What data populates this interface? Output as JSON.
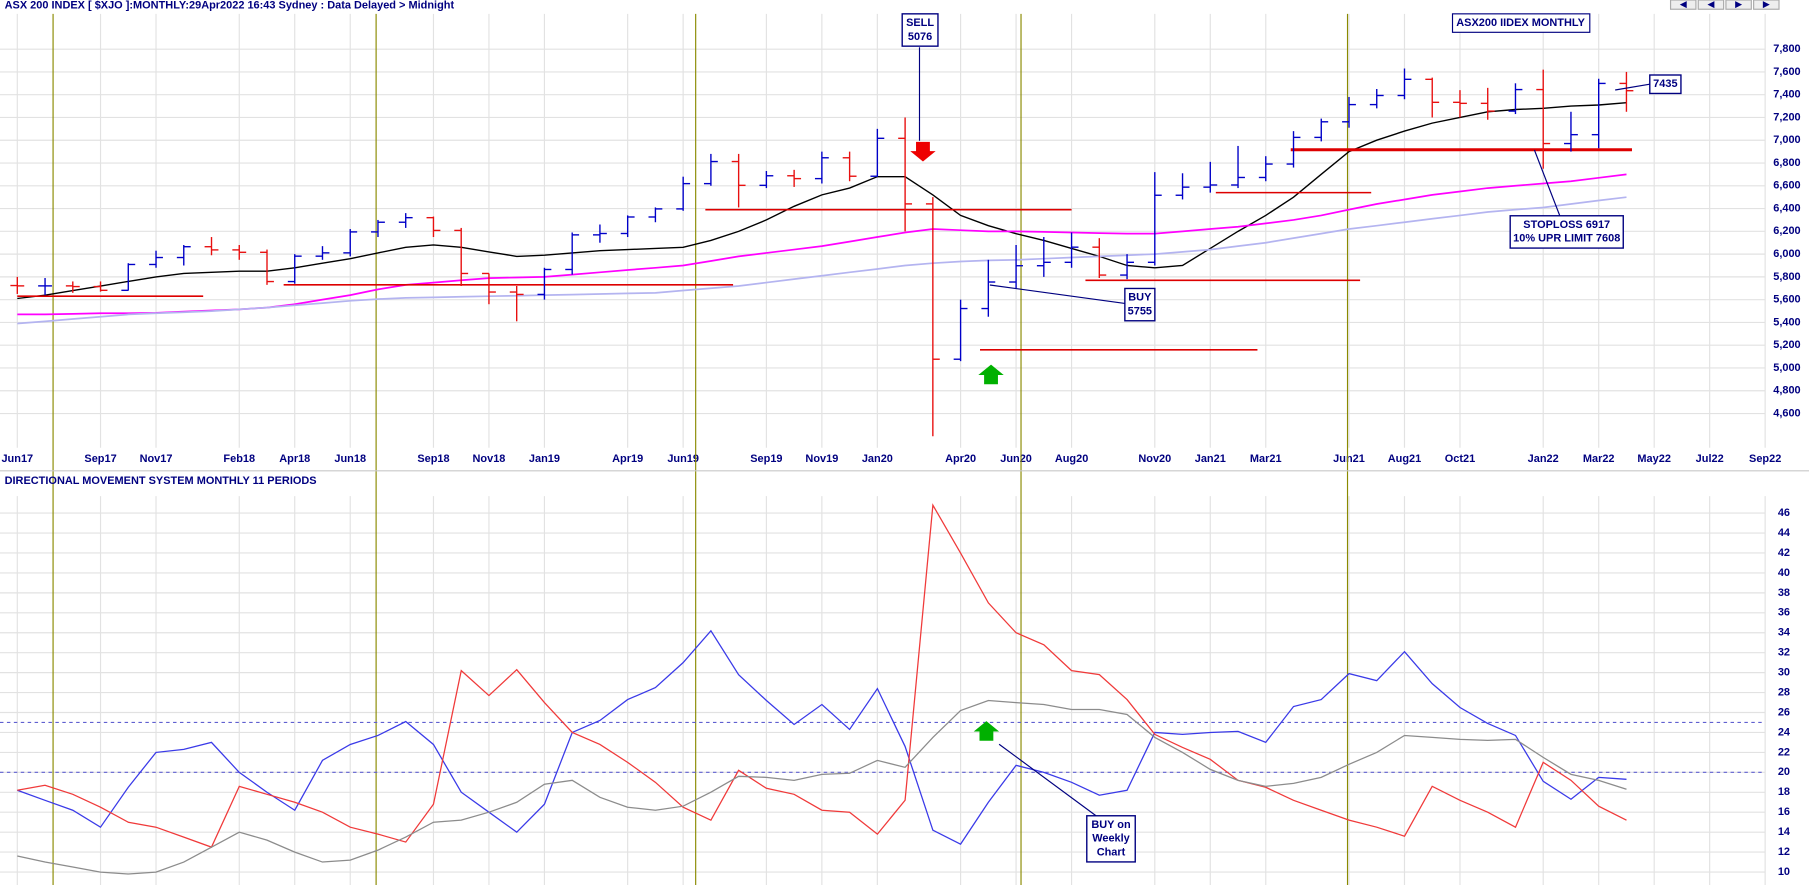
{
  "chart_data": [
    {
      "type": "ohlc",
      "title": "ASX 200 INDEX [ $XJO ]:MONTHLY:29Apr2022 16:43 Sydney : Data Delayed > Midnight",
      "label_box": "ASX200 IIDEX MONTHLY",
      "categories": [
        "Jun17",
        null,
        null,
        "Sep17",
        null,
        "Nov17",
        null,
        null,
        "Feb18",
        null,
        "Apr18",
        null,
        "Jun18",
        null,
        null,
        "Sep18",
        null,
        "Nov18",
        null,
        "Jan19",
        null,
        null,
        "Apr19",
        null,
        "Jun19",
        null,
        null,
        "Sep19",
        null,
        "Nov19",
        null,
        "Jan20",
        null,
        null,
        "Apr20",
        null,
        "Jun20",
        null,
        "Aug20",
        null,
        null,
        "Nov20",
        null,
        "Jan21",
        null,
        "Mar21",
        null,
        null,
        "Jun21",
        null,
        "Aug21",
        null,
        "Oct21",
        null,
        null,
        "Jan22",
        null,
        "Mar22",
        null,
        "May22",
        null,
        "Jul22",
        null,
        "Sep22"
      ],
      "open": [
        5724,
        5721,
        5721,
        5715,
        5682,
        5909,
        5970,
        6065,
        6037,
        6016,
        5759,
        5982,
        6011,
        6195,
        6280,
        6320,
        6208,
        5830,
        5667,
        5646,
        5865,
        6169,
        6181,
        6326,
        6397,
        6619,
        6813,
        6604,
        6688,
        6663,
        6846,
        6684,
        7017,
        6441,
        5077,
        5522,
        5755,
        5898,
        5928,
        6061,
        5816,
        5928,
        6517,
        6588,
        6607,
        6673,
        6791,
        7025,
        7162,
        7313,
        7393,
        7535,
        7333,
        7324,
        7256,
        7445,
        6971,
        7049,
        7499,
        null,
        null,
        null,
        null,
        null
      ],
      "high": [
        5800,
        5790,
        5760,
        5760,
        5920,
        6030,
        6080,
        6150,
        6080,
        6040,
        6000,
        6070,
        6220,
        6300,
        6360,
        6330,
        6230,
        5830,
        5720,
        5880,
        6190,
        6260,
        6340,
        6410,
        6680,
        6880,
        6880,
        6730,
        6740,
        6900,
        6900,
        7100,
        7200,
        6500,
        5600,
        5950,
        6080,
        6150,
        6190,
        6140,
        6000,
        6720,
        6710,
        6810,
        6950,
        6860,
        7080,
        7190,
        7380,
        7450,
        7630,
        7550,
        7440,
        7460,
        7500,
        7620,
        7250,
        7540,
        7600,
        null,
        null,
        null,
        null,
        null
      ],
      "low": [
        5650,
        5640,
        5660,
        5670,
        5680,
        5880,
        5900,
        5990,
        5950,
        5730,
        5740,
        5950,
        5980,
        6150,
        6230,
        6150,
        5720,
        5560,
        5410,
        5600,
        5820,
        6100,
        6150,
        6280,
        6380,
        6600,
        6410,
        6580,
        6590,
        6620,
        6640,
        6680,
        6200,
        4400,
        5060,
        5450,
        5700,
        5800,
        5880,
        5790,
        5780,
        5900,
        6480,
        6540,
        6580,
        6640,
        6760,
        6990,
        7110,
        7280,
        7360,
        7200,
        7200,
        7180,
        7230,
        6750,
        6900,
        6930,
        7250,
        null,
        null,
        null,
        null,
        null
      ],
      "close": [
        5721,
        5721,
        5715,
        5682,
        5909,
        5970,
        6065,
        6037,
        6016,
        5759,
        5982,
        6011,
        6195,
        6280,
        6320,
        6208,
        5830,
        5667,
        5646,
        5865,
        6169,
        6181,
        6326,
        6397,
        6619,
        6813,
        6604,
        6688,
        6663,
        6846,
        6684,
        7017,
        6441,
        5077,
        5522,
        5755,
        5898,
        5928,
        6061,
        5816,
        5928,
        6517,
        6588,
        6607,
        6673,
        6791,
        7025,
        7162,
        7313,
        7393,
        7535,
        7333,
        7324,
        7256,
        7445,
        6971,
        7049,
        7499,
        7435,
        null,
        null,
        null,
        null,
        null
      ],
      "up_color": "#0000c8",
      "down_color": "#e81010",
      "series": [
        {
          "color": "#000000",
          "values": [
            5610,
            5640,
            5680,
            5720,
            5760,
            5800,
            5830,
            5840,
            5850,
            5850,
            5880,
            5920,
            5960,
            6010,
            6060,
            6080,
            6060,
            6020,
            5980,
            5990,
            6010,
            6030,
            6040,
            6050,
            6060,
            6120,
            6200,
            6300,
            6420,
            6520,
            6580,
            6680,
            6680,
            6520,
            6340,
            6250,
            6180,
            6120,
            6050,
            5980,
            5900,
            5880,
            5900,
            6050,
            6200,
            6340,
            6500,
            6700,
            6900,
            7000,
            7080,
            7150,
            7200,
            7250,
            7270,
            7280,
            7300,
            7310,
            7330,
            null,
            null,
            null,
            null,
            null
          ]
        },
        {
          "color": "#ff00ff",
          "values": [
            5470,
            5470,
            5475,
            5480,
            5480,
            5485,
            5495,
            5505,
            5515,
            5530,
            5560,
            5600,
            5640,
            5690,
            5730,
            5750,
            5770,
            5790,
            5795,
            5800,
            5820,
            5840,
            5860,
            5880,
            5900,
            5940,
            5980,
            6010,
            6040,
            6070,
            6110,
            6150,
            6190,
            6220,
            6210,
            6200,
            6200,
            6195,
            6190,
            6185,
            6180,
            6180,
            6200,
            6220,
            6240,
            6270,
            6300,
            6340,
            6390,
            6440,
            6480,
            6520,
            6550,
            6580,
            6600,
            6620,
            6640,
            6670,
            6700,
            null,
            null,
            null,
            null,
            null
          ]
        },
        {
          "color": "#b4b4f0",
          "values": [
            5390,
            5410,
            5430,
            5450,
            5470,
            5480,
            5490,
            5500,
            5515,
            5530,
            5550,
            5570,
            5590,
            5605,
            5615,
            5620,
            5625,
            5630,
            5635,
            5640,
            5645,
            5650,
            5655,
            5660,
            5680,
            5700,
            5720,
            5750,
            5780,
            5810,
            5840,
            5870,
            5900,
            5920,
            5935,
            5945,
            5950,
            5960,
            5970,
            5980,
            5990,
            6000,
            6020,
            6040,
            6070,
            6100,
            6140,
            6180,
            6220,
            6250,
            6280,
            6310,
            6340,
            6370,
            6390,
            6410,
            6440,
            6470,
            6500,
            null,
            null,
            null,
            null,
            null
          ]
        }
      ],
      "levels": [
        {
          "value": 5630,
          "x": [
            0,
            6.7
          ]
        },
        {
          "value": 5730,
          "x": [
            9.6,
            25.8
          ]
        },
        {
          "value": 6390,
          "x": [
            24.8,
            38
          ]
        },
        {
          "value": 5160,
          "x": [
            34.7,
            44.7
          ]
        },
        {
          "value": 5770,
          "x": [
            38.5,
            48.4
          ]
        },
        {
          "value": 6540,
          "x": [
            43.2,
            48.8
          ]
        },
        {
          "value": 6917,
          "x": [
            45.9,
            58.2
          ],
          "bold": true
        }
      ],
      "level_color": "#dd0000",
      "annotations": [
        {
          "lines": [
            "SELL",
            "5076"
          ]
        },
        {
          "lines": [
            "BUY",
            "5755"
          ]
        },
        {
          "lines": [
            "STOPLOSS 6917",
            "10% UPR LIMIT 7608"
          ]
        },
        {
          "lines": [
            "7435"
          ]
        }
      ],
      "ylim": [
        4300,
        8110
      ],
      "yticks": [
        {
          "value": 4600,
          "label": "4,600"
        },
        {
          "value": 4800,
          "label": "4,800"
        },
        {
          "value": 5000,
          "label": "5,000"
        },
        {
          "value": 5200,
          "label": "5,200"
        },
        {
          "value": 5400,
          "label": "5,400"
        },
        {
          "value": 5600,
          "label": "5,600"
        },
        {
          "value": 5800,
          "label": "5,800"
        },
        {
          "value": 6000,
          "label": "6,000"
        },
        {
          "value": 6200,
          "label": "6,200"
        },
        {
          "value": 6400,
          "label": "6,400"
        },
        {
          "value": 6600,
          "label": "6,600"
        },
        {
          "value": 6800,
          "label": "6,800"
        },
        {
          "value": 7000,
          "label": "7,000"
        },
        {
          "value": 7200,
          "label": "7,200"
        },
        {
          "value": 7400,
          "label": "7,400"
        },
        {
          "value": 7600,
          "label": "7,600"
        },
        {
          "value": 7800,
          "label": "7,800"
        }
      ],
      "grid": true
    },
    {
      "type": "line",
      "title": "DIRECTIONAL MOVEMENT SYSTEM MONTHLY 11 PERIODS",
      "series": [
        {
          "color": "#3a3ae8",
          "values": [
            18.2,
            17.2,
            16.2,
            14.5,
            18.5,
            22,
            22.3,
            23,
            20,
            18,
            16.2,
            21.2,
            22.8,
            23.7,
            25.1,
            22.8,
            18,
            16,
            14,
            16.8,
            24,
            25.2,
            27.3,
            28.5,
            31,
            34.2,
            29.8,
            27.2,
            24.8,
            26.8,
            24.3,
            28.4,
            22.6,
            14.2,
            12.8,
            17,
            20.7,
            20,
            19,
            17.7,
            18.2,
            24,
            23.8,
            24,
            24.1,
            23,
            26.6,
            27.3,
            29.9,
            29.2,
            32.1,
            28.9,
            26.5,
            24.9,
            23.7,
            19.1,
            17.3,
            19.5,
            19.3,
            null,
            null,
            null,
            null,
            null
          ]
        },
        {
          "color": "#f03a3a",
          "values": [
            18.2,
            18.7,
            17.8,
            16.5,
            15,
            14.5,
            13.5,
            12.5,
            18.6,
            17.8,
            17,
            16,
            14.5,
            13.8,
            13,
            16.8,
            30.2,
            27.7,
            30.3,
            27,
            24,
            22.8,
            21,
            19,
            16.5,
            15.2,
            20.2,
            18.4,
            17.8,
            16.2,
            16,
            13.8,
            17.2,
            46.8,
            42,
            37,
            34,
            32.8,
            30.2,
            29.8,
            27.3,
            23.8,
            22.5,
            21.3,
            19.2,
            18.5,
            17.2,
            16.2,
            15.2,
            14.5,
            13.6,
            18.6,
            17.2,
            16,
            14.5,
            21,
            19.2,
            16.6,
            15.2,
            null,
            null,
            null,
            null,
            null
          ]
        },
        {
          "color": "#8c8c8c",
          "values": [
            11.6,
            11,
            10.5,
            10,
            9.8,
            10,
            11,
            12.5,
            14,
            13.2,
            12,
            11,
            11.2,
            12.2,
            13.5,
            15,
            15.2,
            16,
            17,
            18.8,
            19.2,
            17.5,
            16.5,
            16.2,
            16.6,
            18,
            19.6,
            19.5,
            19.2,
            19.8,
            19.9,
            21.2,
            20.5,
            23.5,
            26.2,
            27.2,
            27,
            26.8,
            26.3,
            26.3,
            25.8,
            23.5,
            22,
            20.3,
            19.2,
            18.6,
            18.9,
            19.5,
            20.8,
            22,
            23.7,
            23.5,
            23.3,
            23.2,
            23.3,
            21.5,
            19.8,
            19.2,
            18.3,
            null,
            null,
            null,
            null,
            null
          ]
        }
      ],
      "reference_lines": [
        20,
        25
      ],
      "reference_color": "#6060d0",
      "annotations": [
        {
          "lines": [
            "BUY on",
            "Weekly",
            "Chart"
          ]
        }
      ],
      "ylim": [
        8.7,
        47.7
      ],
      "yticks": [
        10,
        12,
        14,
        16,
        18,
        20,
        22,
        24,
        26,
        28,
        30,
        32,
        34,
        36,
        38,
        40,
        42,
        44,
        46
      ],
      "grid": true
    }
  ]
}
